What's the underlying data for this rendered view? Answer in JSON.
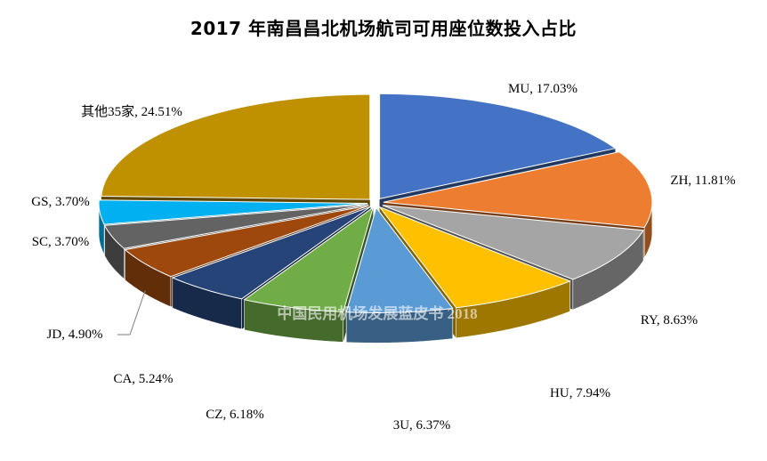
{
  "chart_data": {
    "type": "pie",
    "title": "2017 年南昌昌北机场航司可用座位数投入占比",
    "watermark": "中国民用机场发展蓝皮书 2018",
    "slices": [
      {
        "name": "MU",
        "value": 17.03,
        "label": "MU, 17.03%",
        "color": "#4472C4"
      },
      {
        "name": "ZH",
        "value": 11.81,
        "label": "ZH, 11.81%",
        "color": "#ED7D31"
      },
      {
        "name": "RY",
        "value": 8.63,
        "label": "RY, 8.63%",
        "color": "#A5A5A5"
      },
      {
        "name": "HU",
        "value": 7.94,
        "label": "HU, 7.94%",
        "color": "#FFC000"
      },
      {
        "name": "3U",
        "value": 6.37,
        "label": "3U, 6.37%",
        "color": "#5B9BD5"
      },
      {
        "name": "CZ",
        "value": 6.18,
        "label": "CZ, 6.18%",
        "color": "#70AD47"
      },
      {
        "name": "CA",
        "value": 5.24,
        "label": "CA, 5.24%",
        "color": "#264478"
      },
      {
        "name": "JD",
        "value": 4.9,
        "label": "JD, 4.90%",
        "color": "#9E480E"
      },
      {
        "name": "SC",
        "value": 3.7,
        "label": "SC, 3.70%",
        "color": "#636363"
      },
      {
        "name": "GS",
        "value": 3.7,
        "label": "GS, 3.70%",
        "color": "#00B0F0"
      },
      {
        "name": "其他35家",
        "value": 24.51,
        "label": "其他35家, 24.51%",
        "color": "#BF9000"
      }
    ]
  }
}
